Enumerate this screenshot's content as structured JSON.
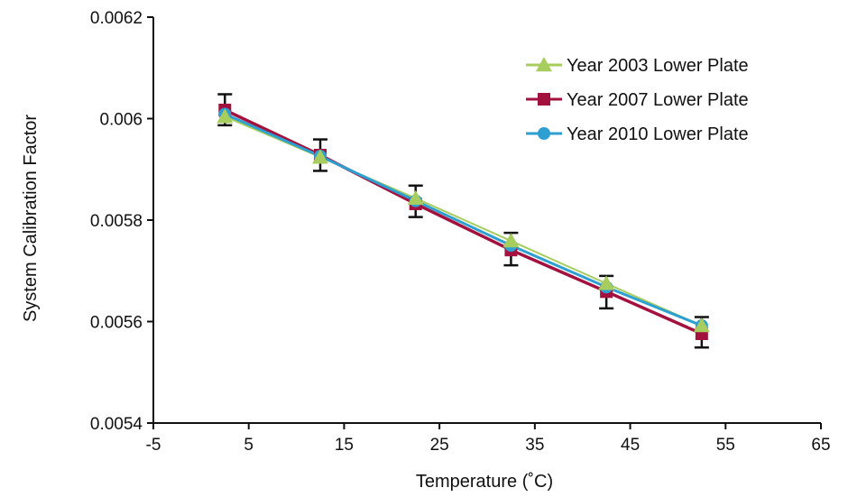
{
  "chart_data": {
    "type": "line",
    "title": "",
    "xlabel": "Temperature (˚C)",
    "ylabel": "System Calibration  Factor",
    "xlim": [
      -5,
      65
    ],
    "ylim": [
      0.0054,
      0.0062
    ],
    "x_ticks": [
      "-5",
      "5",
      "15",
      "25",
      "35",
      "45",
      "55",
      "65"
    ],
    "y_ticks": [
      "0.0054",
      "0.0056",
      "0.0058",
      "0.006",
      "0.0062"
    ],
    "grid": false,
    "legend_position": "top-right",
    "x": [
      2.5,
      12.5,
      22.5,
      32.5,
      42.5,
      52.5
    ],
    "series": [
      {
        "name": "Year 2003 Lower Plate",
        "color": "#a6cd5e",
        "marker": "triangle",
        "values": [
          0.006004,
          0.005924,
          0.005843,
          0.005759,
          0.005675,
          0.005592
        ]
      },
      {
        "name": "Year 2007 Lower Plate",
        "color": "#a3123f",
        "marker": "square",
        "values": [
          0.006017,
          0.005928,
          0.005832,
          0.005741,
          0.005659,
          0.005576
        ]
      },
      {
        "name": "Year 2010 Lower Plate",
        "color": "#2d9fd0",
        "marker": "circle",
        "values": [
          0.006009,
          0.005926,
          0.005838,
          0.00575,
          0.005668,
          0.005592
        ]
      }
    ],
    "error_bars": {
      "color": "#111111",
      "lower": [
        0.005987,
        0.005897,
        0.005806,
        0.005711,
        0.005626,
        0.005549
      ],
      "upper": [
        0.006048,
        0.005959,
        0.005868,
        0.005775,
        0.00569,
        0.005609
      ]
    }
  }
}
